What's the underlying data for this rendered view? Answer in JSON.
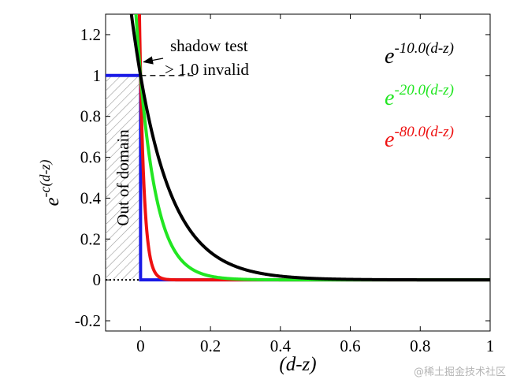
{
  "chart_data": {
    "type": "line",
    "xlabel": "(d-z)",
    "ylabel": {
      "base": "e",
      "exponent": "-c(d-z)"
    },
    "xlim": [
      -0.1,
      1.0
    ],
    "ylim": [
      -0.25,
      1.3
    ],
    "xticks": [
      0,
      0.2,
      0.4,
      0.6,
      0.8,
      1
    ],
    "xtick_labels": [
      "0",
      "0.2",
      "0.4",
      "0.6",
      "0.8",
      "1"
    ],
    "yticks": [
      -0.2,
      0,
      0.2,
      0.4,
      0.6,
      0.8,
      1,
      1.2
    ],
    "ytick_labels": [
      "-0.2",
      "0",
      "0.2",
      "0.4",
      "0.6",
      "0.8",
      "1",
      "1.2"
    ],
    "grid": false,
    "legend_position": "top-right",
    "series": [
      {
        "name_base": "e",
        "name_exponent": "-10.0(d-z)",
        "c": 10,
        "color": "#000000"
      },
      {
        "name_base": "e",
        "name_exponent": "-20.0(d-z)",
        "c": 20,
        "color": "#22e622"
      },
      {
        "name_base": "e",
        "name_exponent": "-80.0(d-z)",
        "c": 80,
        "color": "#ee1111"
      }
    ],
    "step_function": {
      "color": "#1a1ae6",
      "points": [
        [
          -0.1,
          1
        ],
        [
          0,
          1
        ],
        [
          0,
          0
        ],
        [
          1,
          0
        ]
      ]
    },
    "dotted_zero_line": {
      "x": [
        -0.1,
        0
      ],
      "y": 0
    },
    "dashed_one_line": {
      "x": [
        0,
        0.16
      ],
      "y": 1
    },
    "hatched_region": {
      "x": [
        -0.1,
        0
      ],
      "y": [
        0,
        1
      ],
      "label": "Out of domain"
    },
    "annotation": {
      "line1": "shadow test",
      "line2": "> 1.0 invalid",
      "arrow_target": [
        0,
        1.07
      ]
    }
  },
  "watermark": "@稀土掘金技术社区"
}
